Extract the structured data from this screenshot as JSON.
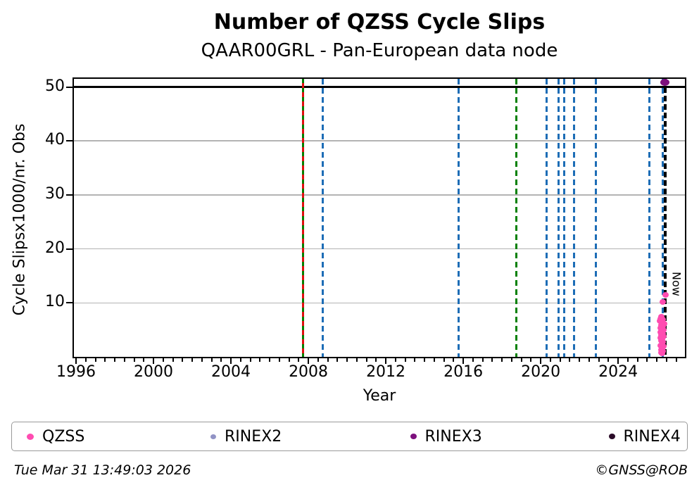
{
  "chart_data": {
    "type": "scatter",
    "title": "Number of QZSS Cycle Slips",
    "subtitle": "QAAR00GRL - Pan-European data node",
    "xlabel": "Year",
    "ylabel": "Cycle Slipsx1000/nr. Obs",
    "xlim": [
      1995.89,
      2027.45
    ],
    "ylim": [
      0,
      51.5
    ],
    "xticks": [
      1996,
      2000,
      2004,
      2008,
      2012,
      2016,
      2020,
      2024
    ],
    "yticks": [
      10,
      20,
      30,
      40,
      50
    ],
    "minor_xtick_step": 0.5,
    "grid_on": true,
    "grid_color": "#b3b3b3",
    "ref_line": {
      "value": 50,
      "color": "#000000",
      "width": 3
    },
    "now_marker": {
      "year": 2026.42,
      "label": "Now"
    },
    "vlines": [
      {
        "name": "green-solid-2007",
        "year": 2007.72,
        "color": "#008000",
        "width": 3,
        "dash": null
      },
      {
        "name": "red-dashed-2007",
        "year": 2007.72,
        "color": "#df1010",
        "width": 3,
        "dash": [
          7,
          6
        ],
        "phase": 6
      },
      {
        "name": "blue-dashed-2008",
        "year": 2008.73,
        "color": "#1d6db6",
        "width": 3,
        "dash": [
          8,
          5
        ]
      },
      {
        "name": "blue-dashed-2015",
        "year": 2015.75,
        "color": "#1d6db6",
        "width": 3,
        "dash": [
          8,
          5
        ]
      },
      {
        "name": "green-dashed-2018",
        "year": 2018.74,
        "color": "#008000",
        "width": 3,
        "dash": [
          8,
          5
        ]
      },
      {
        "name": "blue-dashed-2020a",
        "year": 2020.29,
        "color": "#1d6db6",
        "width": 3,
        "dash": [
          8,
          5
        ]
      },
      {
        "name": "blue-dashed-2020b",
        "year": 2020.92,
        "color": "#1d6db6",
        "width": 3,
        "dash": [
          8,
          5
        ]
      },
      {
        "name": "blue-dashed-2021a",
        "year": 2021.2,
        "color": "#1d6db6",
        "width": 3,
        "dash": [
          8,
          5
        ]
      },
      {
        "name": "blue-dashed-2021b",
        "year": 2021.71,
        "color": "#1d6db6",
        "width": 3,
        "dash": [
          8,
          5
        ]
      },
      {
        "name": "blue-dashed-2022",
        "year": 2022.84,
        "color": "#1d6db6",
        "width": 3,
        "dash": [
          8,
          5
        ]
      },
      {
        "name": "blue-dashed-2025",
        "year": 2025.63,
        "color": "#1d6db6",
        "width": 3,
        "dash": [
          8,
          5
        ]
      },
      {
        "name": "blue-dashed-2026",
        "year": 2026.3,
        "color": "#1d6db6",
        "width": 3,
        "dash": [
          8,
          5
        ]
      },
      {
        "name": "now-line",
        "year": 2026.42,
        "color": "#000000",
        "width": 4,
        "dash": [
          8,
          4
        ]
      }
    ],
    "series": [
      {
        "name": "QZSS",
        "color": "#ff4cb1",
        "marker_w": 9,
        "marker_h": 8,
        "points": [
          [
            2026.44,
            11.5
          ],
          [
            2026.32,
            10.2
          ],
          [
            2026.25,
            7.4
          ],
          [
            2026.2,
            7.1
          ],
          [
            2026.3,
            6.9
          ],
          [
            2026.16,
            6.6
          ],
          [
            2026.27,
            6.4
          ],
          [
            2026.36,
            6.1
          ],
          [
            2026.22,
            5.9
          ],
          [
            2026.3,
            5.6
          ],
          [
            2026.18,
            5.3
          ],
          [
            2026.26,
            5.1
          ],
          [
            2026.34,
            4.9
          ],
          [
            2026.21,
            4.6
          ],
          [
            2026.29,
            4.3
          ],
          [
            2026.24,
            4.0
          ],
          [
            2026.33,
            3.8
          ],
          [
            2026.19,
            3.5
          ],
          [
            2026.28,
            3.2
          ],
          [
            2026.23,
            3.0
          ],
          [
            2026.31,
            2.7
          ],
          [
            2026.26,
            2.4
          ],
          [
            2026.2,
            2.1
          ],
          [
            2026.34,
            1.9
          ],
          [
            2026.28,
            1.6
          ],
          [
            2026.22,
            1.3
          ],
          [
            2026.3,
            1.0
          ],
          [
            2026.25,
            0.8
          ],
          [
            2026.28,
            0.6
          ]
        ]
      },
      {
        "name": "RINEX3",
        "color": "#7d107d",
        "marker_w": 13,
        "marker_h": 10,
        "points": [
          [
            2026.42,
            50.8
          ]
        ]
      }
    ],
    "legend": [
      {
        "label": "QZSS",
        "color": "#ff4cb1",
        "marker": 10
      },
      {
        "label": "RINEX2",
        "color": "#9193c5",
        "marker": 8
      },
      {
        "label": "RINEX3",
        "color": "#7d107d",
        "marker": 9
      },
      {
        "label": "RINEX4",
        "color": "#2a0b28",
        "marker": 9
      }
    ],
    "legend_position": "bottom"
  },
  "footer": {
    "timestamp": "Tue Mar 31 13:49:03 2026",
    "credit": "©GNSS@ROB"
  }
}
